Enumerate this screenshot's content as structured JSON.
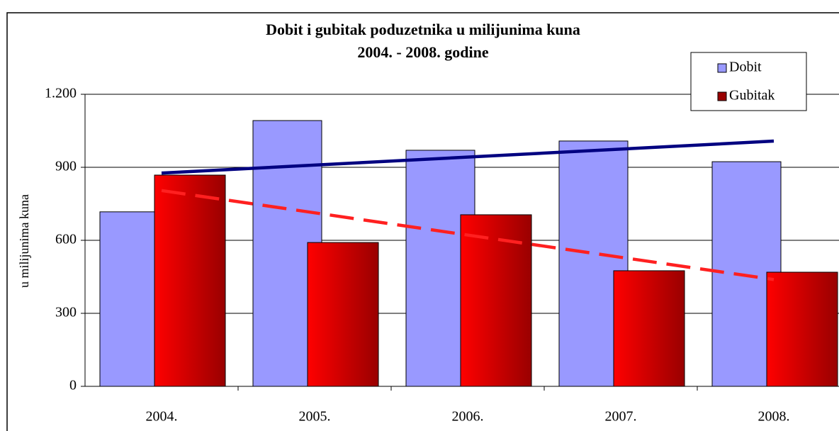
{
  "chart_data": {
    "type": "bar",
    "title": "Dobit i gubitak poduzetnika u milijunima kuna",
    "subtitle": "2004. - 2008. godine",
    "y_label": "u milijunima kuna",
    "categories": [
      "2004.",
      "2005.",
      "2006.",
      "2007.",
      "2008."
    ],
    "series": [
      {
        "name": "Dobit",
        "color": "#9999ff",
        "values": [
          717,
          1092,
          970,
          1008,
          923
        ],
        "trendline": "solid",
        "trend_color": "#000080"
      },
      {
        "name": "Gubitak",
        "color": "#ff0000",
        "color2": "#990000",
        "values": [
          868,
          591,
          705,
          475,
          469
        ],
        "trendline": "dashed",
        "trend_color": "#ff2020"
      }
    ],
    "ylim": [
      0,
      1200
    ],
    "yticks": [
      0,
      300,
      600,
      900,
      {
        "value": 1200,
        "label": "1.200"
      }
    ],
    "grid": true,
    "legend": "top-right"
  }
}
